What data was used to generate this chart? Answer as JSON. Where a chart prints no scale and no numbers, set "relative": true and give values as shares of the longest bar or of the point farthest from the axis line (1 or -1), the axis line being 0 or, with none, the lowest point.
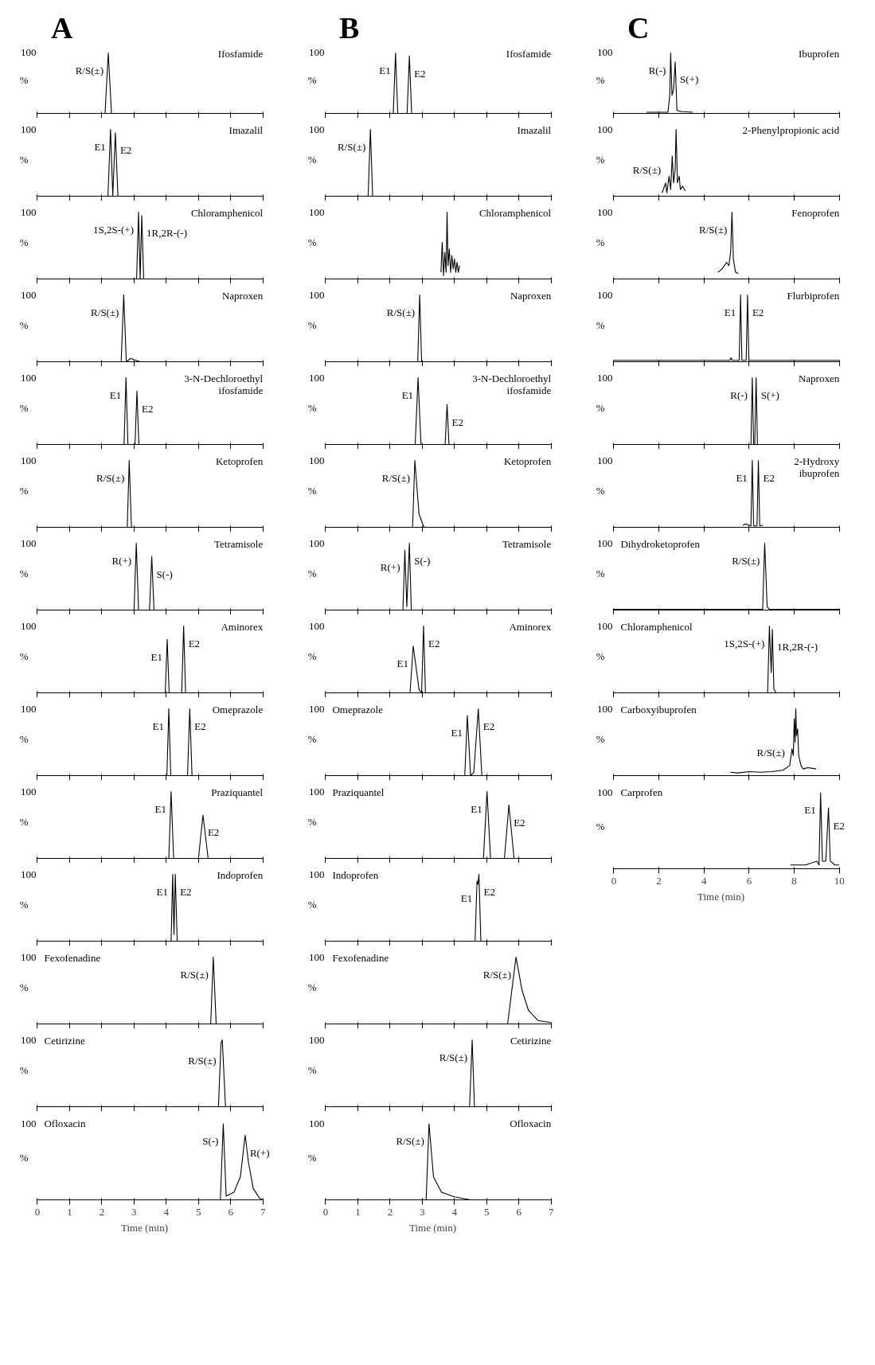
{
  "chart_data": [
    {
      "type": "line",
      "title": "Ifosfamide",
      "ylabel": "%",
      "relative": true,
      "xlim": [
        0,
        7
      ],
      "xticks": [
        0,
        1,
        2,
        3,
        4,
        5,
        6,
        7
      ],
      "tick_labels": false,
      "annotations": [
        "100",
        "A",
        {
          "text": "R/S(±)",
          "x": 2.2,
          "y": 1
        }
      ],
      "series": [
        {
          "color": "#000000",
          "x": [
            0,
            2.1,
            2.2,
            2.3,
            7
          ],
          "values": [
            0,
            0,
            1,
            0,
            0
          ]
        }
      ]
    },
    {
      "type": "line",
      "title": "Imazalil",
      "ylabel": "%",
      "relative": true,
      "xlim": [
        0,
        7
      ],
      "xticks": [
        0,
        1,
        2,
        3,
        4,
        5,
        6,
        7
      ],
      "tick_labels": false,
      "annotations": [
        "100",
        {
          "text": "E1",
          "x": 2.27,
          "y": 1
        },
        {
          "text": "E2",
          "x": 2.42,
          "y": 0.95
        }
      ],
      "series": [
        {
          "color": "#000000",
          "x": [
            0,
            2.19,
            2.27,
            2.34,
            2.42,
            2.5,
            7
          ],
          "values": [
            0,
            0,
            1,
            0,
            0.95,
            0,
            0
          ]
        }
      ]
    },
    {
      "type": "line",
      "title": "Chloramphenicol",
      "ylabel": "%",
      "relative": true,
      "xlim": [
        0,
        7
      ],
      "xticks": [
        0,
        1,
        2,
        3,
        4,
        5,
        6,
        7
      ],
      "tick_labels": false,
      "annotations": [
        "100",
        {
          "text": "1S,2S-(+)",
          "x": 3.14,
          "y": 1
        },
        {
          "text": "1R,2R-(-)",
          "x": 3.24,
          "y": 0.95
        }
      ],
      "series": [
        {
          "color": "#000000",
          "x": [
            0,
            3.08,
            3.14,
            3.19,
            3.24,
            3.3,
            7
          ],
          "values": [
            0,
            0,
            1,
            0,
            0.95,
            0,
            0
          ]
        }
      ]
    },
    {
      "type": "line",
      "title": "Naproxen",
      "ylabel": "%",
      "relative": true,
      "xlim": [
        0,
        7
      ],
      "xticks": [
        0,
        1,
        2,
        3,
        4,
        5,
        6,
        7
      ],
      "tick_labels": false,
      "annotations": [
        "100",
        {
          "text": "R/S(±)",
          "x": 2.68,
          "y": 1
        }
      ],
      "series": [
        {
          "color": "#000000",
          "x": [
            0,
            2.6,
            2.68,
            2.76,
            2.9,
            3.0,
            3.2,
            7
          ],
          "values": [
            0,
            0,
            1,
            0,
            0.05,
            0.03,
            0,
            0
          ]
        }
      ]
    },
    {
      "type": "line",
      "title": "3-N-Dechloroethyl\nifosfamide",
      "ylabel": "%",
      "relative": true,
      "xlim": [
        0,
        7
      ],
      "xticks": [
        0,
        1,
        2,
        3,
        4,
        5,
        6,
        7
      ],
      "tick_labels": false,
      "annotations": [
        "100",
        {
          "text": "E1",
          "x": 2.75,
          "y": 1
        },
        {
          "text": "E2",
          "x": 3.09,
          "y": 0.8
        }
      ],
      "series": [
        {
          "color": "#000000",
          "x": [
            0,
            2.69,
            2.75,
            2.81,
            3.03,
            3.09,
            3.15,
            7
          ],
          "values": [
            0,
            0,
            1,
            0,
            0,
            0.8,
            0,
            0
          ]
        }
      ]
    },
    {
      "type": "line",
      "title": "Ketoprofen",
      "ylabel": "%",
      "relative": true,
      "xlim": [
        0,
        7
      ],
      "xticks": [
        0,
        1,
        2,
        3,
        4,
        5,
        6,
        7
      ],
      "tick_labels": false,
      "annotations": [
        "100",
        {
          "text": "R/S(±)",
          "x": 2.85,
          "y": 1
        }
      ],
      "series": [
        {
          "color": "#000000",
          "x": [
            0,
            2.79,
            2.85,
            2.92,
            7
          ],
          "values": [
            0,
            0,
            1,
            0,
            0
          ]
        }
      ]
    },
    {
      "type": "line",
      "title": "Tetramisole",
      "ylabel": "%",
      "relative": true,
      "xlim": [
        0,
        7
      ],
      "xticks": [
        0,
        1,
        2,
        3,
        4,
        5,
        6,
        7
      ],
      "tick_labels": false,
      "annotations": [
        "100",
        {
          "text": "R(+)",
          "x": 3.07,
          "y": 1
        },
        {
          "text": "S(-)",
          "x": 3.55,
          "y": 0.8
        }
      ],
      "series": [
        {
          "color": "#000000",
          "x": [
            0,
            3.0,
            3.07,
            3.14,
            3.48,
            3.55,
            3.62,
            7
          ],
          "values": [
            0,
            0,
            1,
            0,
            0,
            0.8,
            0,
            0
          ]
        }
      ]
    },
    {
      "type": "line",
      "title": "Aminorex",
      "ylabel": "%",
      "relative": true,
      "xlim": [
        0,
        7
      ],
      "xticks": [
        0,
        1,
        2,
        3,
        4,
        5,
        6,
        7
      ],
      "tick_labels": false,
      "annotations": [
        "100",
        {
          "text": "E1",
          "x": 4.03,
          "y": 0.8
        },
        {
          "text": "E2",
          "x": 4.54,
          "y": 1
        }
      ],
      "series": [
        {
          "color": "#000000",
          "x": [
            0,
            3.97,
            4.03,
            4.09,
            4.48,
            4.54,
            4.6,
            7
          ],
          "values": [
            0,
            0,
            0.8,
            0,
            0,
            1,
            0,
            0
          ]
        }
      ]
    },
    {
      "type": "line",
      "title": "Omeprazole",
      "ylabel": "%",
      "relative": true,
      "xlim": [
        0,
        7
      ],
      "xticks": [
        0,
        1,
        2,
        3,
        4,
        5,
        6,
        7
      ],
      "tick_labels": false,
      "annotations": [
        "100",
        {
          "text": "E1",
          "x": 4.08,
          "y": 1
        },
        {
          "text": "E2",
          "x": 4.73,
          "y": 1
        }
      ],
      "series": [
        {
          "color": "#000000",
          "x": [
            0,
            4.02,
            4.08,
            4.14,
            4.66,
            4.73,
            4.8,
            7
          ],
          "values": [
            0,
            0,
            1,
            0,
            0,
            1,
            0,
            0
          ]
        }
      ]
    },
    {
      "type": "line",
      "title": "Praziquantel",
      "ylabel": "%",
      "relative": true,
      "xlim": [
        0,
        7
      ],
      "xticks": [
        0,
        1,
        2,
        3,
        4,
        5,
        6,
        7
      ],
      "tick_labels": false,
      "annotations": [
        "100",
        {
          "text": "E1",
          "x": 4.15,
          "y": 1
        },
        {
          "text": "E2",
          "x": 5.14,
          "y": 0.65
        }
      ],
      "series": [
        {
          "color": "#000000",
          "x": [
            0,
            4.08,
            4.15,
            4.23,
            5.0,
            5.14,
            5.3,
            7
          ],
          "values": [
            0,
            0,
            1,
            0,
            0,
            0.65,
            0,
            0
          ]
        }
      ]
    },
    {
      "type": "line",
      "title": "Indoprofen",
      "ylabel": "%",
      "relative": true,
      "xlim": [
        0,
        7
      ],
      "xticks": [
        0,
        1,
        2,
        3,
        4,
        5,
        6,
        7
      ],
      "tick_labels": false,
      "annotations": [
        "100",
        {
          "text": "E1",
          "x": 4.2,
          "y": 1
        },
        {
          "text": "E2",
          "x": 4.28,
          "y": 1
        }
      ],
      "series": [
        {
          "color": "#000000",
          "x": [
            0,
            4.15,
            4.2,
            4.24,
            4.28,
            4.34,
            7
          ],
          "values": [
            0,
            0,
            1,
            0.1,
            1,
            0,
            0
          ]
        }
      ]
    },
    {
      "type": "line",
      "title": "Fexofenadine",
      "ylabel": "%",
      "relative": true,
      "xlim": [
        0,
        7
      ],
      "xticks": [
        0,
        1,
        2,
        3,
        4,
        5,
        6,
        7
      ],
      "tick_labels": false,
      "annotations": [
        "100",
        {
          "text": "R/S(±)",
          "x": 5.46,
          "y": 1
        }
      ],
      "series": [
        {
          "color": "#000000",
          "x": [
            0,
            5.38,
            5.46,
            5.55,
            7
          ],
          "values": [
            0,
            0,
            1,
            0,
            0
          ]
        }
      ]
    },
    {
      "type": "line",
      "title": "Cetirizine",
      "ylabel": "%",
      "relative": true,
      "xlim": [
        0,
        7
      ],
      "xticks": [
        0,
        1,
        2,
        3,
        4,
        5,
        6,
        7
      ],
      "tick_labels": false,
      "annotations": [
        "100",
        {
          "text": "R/S(±)",
          "x": 5.7,
          "y": 0.95
        }
      ],
      "series": [
        {
          "color": "#000000",
          "x": [
            0,
            5.62,
            5.7,
            5.74,
            5.84,
            7
          ],
          "values": [
            0,
            0,
            0.95,
            1,
            0,
            0
          ]
        }
      ]
    },
    {
      "type": "line",
      "title": "Ofloxacin",
      "ylabel": "%",
      "xlabel": "Time (min)",
      "relative": true,
      "xlim": [
        0,
        7
      ],
      "xticks": [
        0,
        1,
        2,
        3,
        4,
        5,
        6,
        7
      ],
      "tick_labels": "x",
      "annotations": [
        "100",
        {
          "text": "S(-)",
          "x": 5.77,
          "y": 1
        },
        {
          "text": "R(+)",
          "x": 6.45,
          "y": 0.85
        }
      ],
      "series": [
        {
          "color": "#000000",
          "x": [
            0,
            5.68,
            5.77,
            5.86,
            6.1,
            6.3,
            6.45,
            6.55,
            6.7,
            6.9,
            7
          ],
          "values": [
            0,
            0,
            1,
            0.05,
            0.1,
            0.3,
            0.85,
            0.5,
            0.15,
            0.02,
            0
          ]
        }
      ]
    },
    {
      "type": "line",
      "title": "Ifosfamide",
      "ylabel": "%",
      "relative": true,
      "xlim": [
        0,
        7
      ],
      "xticks": [
        0,
        1,
        2,
        3,
        4,
        5,
        6,
        7
      ],
      "tick_labels": false,
      "annotations": [
        "100",
        "B",
        {
          "text": "E1",
          "x": 2.17,
          "y": 1
        },
        {
          "text": "E2",
          "x": 2.6,
          "y": 0.95
        }
      ],
      "series": [
        {
          "color": "#000000",
          "x": [
            0,
            2.1,
            2.17,
            2.24,
            2.53,
            2.6,
            2.67,
            7
          ],
          "values": [
            0,
            0,
            1,
            0,
            0,
            0.95,
            0,
            0
          ]
        }
      ]
    },
    {
      "type": "line",
      "title": "Imazalil",
      "ylabel": "%",
      "relative": true,
      "xlim": [
        0,
        7
      ],
      "xticks": [
        0,
        1,
        2,
        3,
        4,
        5,
        6,
        7
      ],
      "tick_labels": false,
      "annotations": [
        "100",
        {
          "text": "R/S(±)",
          "x": 1.39,
          "y": 1
        }
      ],
      "series": [
        {
          "color": "#000000",
          "x": [
            0,
            1.32,
            1.39,
            1.46,
            7
          ],
          "values": [
            0,
            0,
            1,
            0,
            0
          ]
        }
      ]
    },
    {
      "type": "line",
      "title": "Chloramphenicol",
      "ylabel": "%",
      "relative": true,
      "xlim": [
        0,
        7
      ],
      "xticks": [
        0,
        1,
        2,
        3,
        4,
        5,
        6,
        7
      ],
      "tick_labels": false,
      "annotations": [
        "100"
      ],
      "series": [
        {
          "color": "#000000",
          "x": [
            3.58,
            3.62,
            3.66,
            3.7,
            3.74,
            3.77,
            3.8,
            3.84,
            3.88,
            3.92,
            3.96,
            4.0,
            4.04,
            4.08,
            4.12,
            4.16
          ],
          "values": [
            0.1,
            0.55,
            0.05,
            0.4,
            0.1,
            1,
            0.2,
            0.45,
            0.1,
            0.35,
            0.15,
            0.3,
            0.1,
            0.25,
            0.1,
            0.2
          ]
        }
      ]
    },
    {
      "type": "line",
      "title": "Naproxen",
      "ylabel": "%",
      "relative": true,
      "xlim": [
        0,
        7
      ],
      "xticks": [
        0,
        1,
        2,
        3,
        4,
        5,
        6,
        7
      ],
      "tick_labels": false,
      "annotations": [
        "100",
        {
          "text": "R/S(±)",
          "x": 2.92,
          "y": 1
        }
      ],
      "series": [
        {
          "color": "#000000",
          "x": [
            0,
            2.86,
            2.92,
            2.98,
            7
          ],
          "values": [
            0,
            0,
            1,
            0,
            0
          ]
        }
      ]
    },
    {
      "type": "line",
      "title": "3-N-Dechloroethyl\nifosfamide",
      "ylabel": "%",
      "relative": true,
      "xlim": [
        0,
        7
      ],
      "xticks": [
        0,
        1,
        2,
        3,
        4,
        5,
        6,
        7
      ],
      "tick_labels": false,
      "annotations": [
        "100",
        {
          "text": "E1",
          "x": 2.87,
          "y": 1
        },
        {
          "text": "E2",
          "x": 3.77,
          "y": 0.6
        }
      ],
      "series": [
        {
          "color": "#000000",
          "x": [
            0,
            2.78,
            2.87,
            2.96,
            3.71,
            3.77,
            3.83,
            7
          ],
          "values": [
            0,
            0,
            1,
            0,
            0,
            0.6,
            0,
            0
          ]
        }
      ]
    },
    {
      "type": "line",
      "title": "Ketoprofen",
      "ylabel": "%",
      "relative": true,
      "xlim": [
        0,
        7
      ],
      "xticks": [
        0,
        1,
        2,
        3,
        4,
        5,
        6,
        7
      ],
      "tick_labels": false,
      "annotations": [
        "100",
        {
          "text": "R/S(±)",
          "x": 2.77,
          "y": 1
        }
      ],
      "series": [
        {
          "color": "#000000",
          "x": [
            0,
            2.7,
            2.77,
            2.9,
            3.05,
            7
          ],
          "values": [
            0,
            0,
            1,
            0.2,
            0,
            0
          ]
        }
      ]
    },
    {
      "type": "line",
      "title": "Tetramisole",
      "ylabel": "%",
      "relative": true,
      "xlim": [
        0,
        7
      ],
      "xticks": [
        0,
        1,
        2,
        3,
        4,
        5,
        6,
        7
      ],
      "tick_labels": false,
      "annotations": [
        "100",
        {
          "text": "R(+)",
          "x": 2.46,
          "y": 0.9
        },
        {
          "text": "S(-)",
          "x": 2.6,
          "y": 1
        }
      ],
      "series": [
        {
          "color": "#000000",
          "x": [
            0,
            2.4,
            2.46,
            2.52,
            2.6,
            2.66,
            7
          ],
          "values": [
            0,
            0,
            0.9,
            0.05,
            1,
            0,
            0
          ]
        }
      ]
    },
    {
      "type": "line",
      "title": "Aminorex",
      "ylabel": "%",
      "relative": true,
      "xlim": [
        0,
        7
      ],
      "xticks": [
        0,
        1,
        2,
        3,
        4,
        5,
        6,
        7
      ],
      "tick_labels": false,
      "annotations": [
        "100",
        {
          "text": "E1",
          "x": 2.72,
          "y": 0.7
        },
        {
          "text": "E2",
          "x": 3.04,
          "y": 1
        }
      ],
      "series": [
        {
          "color": "#000000",
          "x": [
            0,
            2.62,
            2.72,
            2.9,
            2.98,
            3.04,
            3.1,
            7
          ],
          "values": [
            0,
            0,
            0.7,
            0.05,
            0,
            1,
            0,
            0
          ]
        }
      ]
    },
    {
      "type": "line",
      "title": "Omeprazole",
      "ylabel": "%",
      "relative": true,
      "xlim": [
        0,
        7
      ],
      "xticks": [
        0,
        1,
        2,
        3,
        4,
        5,
        6,
        7
      ],
      "tick_labels": false,
      "annotations": [
        "100",
        {
          "text": "E1",
          "x": 4.4,
          "y": 0.9
        },
        {
          "text": "E2",
          "x": 4.74,
          "y": 1
        }
      ],
      "series": [
        {
          "color": "#000000",
          "x": [
            0,
            4.32,
            4.4,
            4.5,
            4.6,
            4.74,
            4.85,
            7
          ],
          "values": [
            0,
            0,
            0.9,
            0,
            0.05,
            1,
            0,
            0
          ]
        }
      ]
    },
    {
      "type": "line",
      "title": "Praziquantel",
      "ylabel": "%",
      "relative": true,
      "xlim": [
        0,
        7
      ],
      "xticks": [
        0,
        1,
        2,
        3,
        4,
        5,
        6,
        7
      ],
      "tick_labels": false,
      "annotations": [
        "100",
        {
          "text": "E1",
          "x": 5.01,
          "y": 1
        },
        {
          "text": "E2",
          "x": 5.69,
          "y": 0.8
        }
      ],
      "series": [
        {
          "color": "#000000",
          "x": [
            0,
            4.9,
            5.01,
            5.12,
            5.55,
            5.69,
            5.85,
            7
          ],
          "values": [
            0,
            0,
            1,
            0,
            0,
            0.8,
            0,
            0
          ]
        }
      ]
    },
    {
      "type": "line",
      "title": "Indoprofen",
      "ylabel": "%",
      "relative": true,
      "xlim": [
        0,
        7
      ],
      "xticks": [
        0,
        1,
        2,
        3,
        4,
        5,
        6,
        7
      ],
      "tick_labels": false,
      "annotations": [
        "100",
        {
          "text": "E1",
          "x": 4.7,
          "y": 0.9
        },
        {
          "text": "E2",
          "x": 4.76,
          "y": 1
        }
      ],
      "series": [
        {
          "color": "#000000",
          "x": [
            0,
            4.64,
            4.7,
            4.73,
            4.76,
            4.82,
            7
          ],
          "values": [
            0,
            0,
            0.9,
            0.85,
            1,
            0,
            0
          ]
        }
      ]
    },
    {
      "type": "line",
      "title": "Fexofenadine",
      "ylabel": "%",
      "relative": true,
      "xlim": [
        0,
        7
      ],
      "xticks": [
        0,
        1,
        2,
        3,
        4,
        5,
        6,
        7
      ],
      "tick_labels": false,
      "annotations": [
        "100",
        {
          "text": "R/S(±)",
          "x": 5.91,
          "y": 1
        }
      ],
      "series": [
        {
          "color": "#000000",
          "x": [
            0,
            5.65,
            5.91,
            6.1,
            6.3,
            6.6,
            7
          ],
          "values": [
            0,
            0,
            1,
            0.5,
            0.2,
            0.05,
            0.02
          ]
        }
      ]
    },
    {
      "type": "line",
      "title": "Cetirizine",
      "ylabel": "%",
      "relative": true,
      "xlim": [
        0,
        7
      ],
      "xticks": [
        0,
        1,
        2,
        3,
        4,
        5,
        6,
        7
      ],
      "tick_labels": false,
      "annotations": [
        "100",
        {
          "text": "R/S(±)",
          "x": 4.55,
          "y": 1
        }
      ],
      "series": [
        {
          "color": "#000000",
          "x": [
            0,
            4.47,
            4.55,
            4.62,
            7
          ],
          "values": [
            0,
            0,
            1,
            0,
            0
          ]
        }
      ]
    },
    {
      "type": "line",
      "title": "Ofloxacin",
      "ylabel": "%",
      "xlabel": "Time (min)",
      "relative": true,
      "xlim": [
        0,
        7
      ],
      "xticks": [
        0,
        1,
        2,
        3,
        4,
        5,
        6,
        7
      ],
      "tick_labels": "x",
      "annotations": [
        "100",
        {
          "text": "R/S(±)",
          "x": 3.21,
          "y": 1
        }
      ],
      "series": [
        {
          "color": "#000000",
          "x": [
            0,
            3.12,
            3.21,
            3.35,
            3.6,
            4.0,
            4.5,
            7
          ],
          "values": [
            0,
            0,
            1,
            0.3,
            0.1,
            0.04,
            0,
            0
          ]
        }
      ]
    },
    {
      "type": "line",
      "title": "Ibuprofen",
      "ylabel": "%",
      "relative": true,
      "xlim": [
        0,
        10
      ],
      "xticks": [
        0,
        2,
        4,
        6,
        8,
        10
      ],
      "tick_labels": false,
      "annotations": [
        "100",
        "C",
        {
          "text": "R(-)",
          "x": 2.52,
          "y": 1
        },
        {
          "text": "S(+)",
          "x": 2.72,
          "y": 0.85
        }
      ],
      "series": [
        {
          "color": "#000000",
          "x": [
            1.45,
            2.4,
            2.48,
            2.52,
            2.58,
            2.65,
            2.72,
            2.8,
            3.0,
            3.5
          ],
          "values": [
            0.02,
            0.02,
            0.3,
            1,
            0.3,
            0.4,
            0.85,
            0.05,
            0.03,
            0.02
          ]
        }
      ]
    },
    {
      "type": "line",
      "title": "2-Phenylpropionic acid",
      "ylabel": "%",
      "relative": true,
      "xlim": [
        0,
        10
      ],
      "xticks": [
        0,
        2,
        4,
        6,
        8,
        10
      ],
      "tick_labels": false,
      "annotations": [
        "100",
        {
          "text": "R/S(±)",
          "x": 2.3,
          "y": 0.2
        }
      ],
      "series": [
        {
          "color": "#000000",
          "x": [
            2.14,
            2.3,
            2.35,
            2.45,
            2.52,
            2.59,
            2.65,
            2.72,
            2.76,
            2.82,
            2.9,
            2.95,
            3.05,
            3.17
          ],
          "values": [
            0.05,
            0.2,
            0.05,
            0.3,
            0.1,
            0.6,
            0.2,
            0.4,
            1,
            0.2,
            0.3,
            0.1,
            0.15,
            0.08
          ]
        }
      ]
    },
    {
      "type": "line",
      "title": "Fenoprofen",
      "ylabel": "%",
      "relative": true,
      "xlim": [
        0,
        10
      ],
      "xticks": [
        0,
        2,
        4,
        6,
        8,
        10
      ],
      "tick_labels": false,
      "annotations": [
        "100",
        {
          "text": "R/S(±)",
          "x": 5.24,
          "y": 1
        }
      ],
      "series": [
        {
          "color": "#000000",
          "x": [
            4.62,
            4.8,
            5.0,
            5.1,
            5.18,
            5.24,
            5.3,
            5.4,
            5.52
          ],
          "values": [
            0.1,
            0.15,
            0.25,
            0.2,
            0.4,
            1,
            0.3,
            0.1,
            0.08
          ]
        }
      ]
    },
    {
      "type": "line",
      "title": "Flurbiprofen",
      "ylabel": "%",
      "relative": true,
      "xlim": [
        0,
        10
      ],
      "xticks": [
        0,
        2,
        4,
        6,
        8,
        10
      ],
      "tick_labels": false,
      "annotations": [
        "100",
        {
          "text": "E1",
          "x": 5.62,
          "y": 1
        },
        {
          "text": "E2",
          "x": 5.93,
          "y": 1
        }
      ],
      "series": [
        {
          "color": "#000000",
          "x": [
            0,
            5.15,
            5.2,
            5.25,
            5.56,
            5.62,
            5.68,
            5.87,
            5.93,
            5.99,
            10
          ],
          "values": [
            0.02,
            0.02,
            0.06,
            0.02,
            0.02,
            1,
            0.02,
            0.02,
            1,
            0.02,
            0.02
          ]
        }
      ]
    },
    {
      "type": "line",
      "title": "Naproxen",
      "ylabel": "%",
      "relative": true,
      "xlim": [
        0,
        10
      ],
      "xticks": [
        0,
        2,
        4,
        6,
        8,
        10
      ],
      "tick_labels": false,
      "annotations": [
        "100",
        {
          "text": "R(-)",
          "x": 6.14,
          "y": 1
        },
        {
          "text": "S(+)",
          "x": 6.31,
          "y": 1
        }
      ],
      "series": [
        {
          "color": "#000000",
          "x": [
            0,
            6.08,
            6.14,
            6.2,
            6.25,
            6.31,
            6.37,
            10
          ],
          "values": [
            0,
            0,
            1,
            0,
            0,
            1,
            0,
            0
          ]
        }
      ]
    },
    {
      "type": "line",
      "title": "2-Hydroxy\nibuprofen",
      "ylabel": "%",
      "relative": true,
      "xlim": [
        0,
        10
      ],
      "xticks": [
        0,
        2,
        4,
        6,
        8,
        10
      ],
      "tick_labels": false,
      "annotations": [
        "100",
        {
          "text": "E1",
          "x": 6.14,
          "y": 1
        },
        {
          "text": "E2",
          "x": 6.41,
          "y": 1
        }
      ],
      "series": [
        {
          "color": "#000000",
          "x": [
            5.72,
            5.85,
            6.08,
            6.14,
            6.2,
            6.35,
            6.41,
            6.47,
            6.62
          ],
          "values": [
            0.03,
            0.05,
            0.02,
            1,
            0.02,
            0.02,
            1,
            0.02,
            0.03
          ]
        }
      ]
    },
    {
      "type": "line",
      "title": "Dihydroketoprofen",
      "ylabel": "%",
      "relative": true,
      "xlim": [
        0,
        10
      ],
      "xticks": [
        0,
        2,
        4,
        6,
        8,
        10
      ],
      "tick_labels": false,
      "annotations": [
        "100",
        {
          "text": "R/S(±)",
          "x": 6.69,
          "y": 1
        }
      ],
      "series": [
        {
          "color": "#000000",
          "x": [
            0,
            6.6,
            6.69,
            6.8,
            6.9,
            10
          ],
          "values": [
            0.01,
            0.01,
            1,
            0.05,
            0.01,
            0.01
          ]
        }
      ]
    },
    {
      "type": "line",
      "title": "Chloramphenicol",
      "ylabel": "%",
      "relative": true,
      "xlim": [
        0,
        10
      ],
      "xticks": [
        0,
        2,
        4,
        6,
        8,
        10
      ],
      "tick_labels": false,
      "annotations": [
        "100",
        {
          "text": "1S,2S-(+)",
          "x": 6.9,
          "y": 1
        },
        {
          "text": "1R,2R-(-)",
          "x": 7.03,
          "y": 0.95
        }
      ],
      "series": [
        {
          "color": "#000000",
          "x": [
            0,
            6.82,
            6.9,
            6.98,
            7.03,
            7.1,
            7.2,
            10
          ],
          "values": [
            0,
            0,
            1,
            0.3,
            0.95,
            0.05,
            0,
            0
          ]
        }
      ]
    },
    {
      "type": "line",
      "title": "Carboxyibuprofen",
      "ylabel": "%",
      "relative": true,
      "xlim": [
        0,
        10
      ],
      "xticks": [
        0,
        2,
        4,
        6,
        8,
        10
      ],
      "tick_labels": false,
      "annotations": [
        "100",
        {
          "text": "R/S(±)",
          "x": 7.8,
          "y": 0.15
        }
      ],
      "series": [
        {
          "color": "#000000",
          "x": [
            5.17,
            5.5,
            6.0,
            6.5,
            7.0,
            7.5,
            7.8,
            7.9,
            7.96,
            8.0,
            8.04,
            8.07,
            8.1,
            8.15,
            8.2,
            8.3,
            8.4,
            8.6,
            8.97
          ],
          "values": [
            0.05,
            0.04,
            0.06,
            0.05,
            0.06,
            0.08,
            0.15,
            0.4,
            0.3,
            0.85,
            0.5,
            1,
            0.6,
            0.7,
            0.3,
            0.15,
            0.1,
            0.12,
            0.1
          ]
        }
      ]
    },
    {
      "type": "line",
      "title": "Carprofen",
      "ylabel": "%",
      "xlabel": "Time (min)",
      "relative": true,
      "xlim": [
        0,
        10
      ],
      "xticks": [
        0,
        2,
        4,
        6,
        8,
        10
      ],
      "tick_labels": "x",
      "annotations": [
        "100",
        {
          "text": "E1",
          "x": 9.17,
          "y": 1
        },
        {
          "text": "E2",
          "x": 9.52,
          "y": 0.8
        }
      ],
      "series": [
        {
          "color": "#000000",
          "x": [
            7.83,
            8.5,
            9.0,
            9.1,
            9.17,
            9.25,
            9.4,
            9.52,
            9.6,
            9.8,
            10
          ],
          "values": [
            0.05,
            0.05,
            0.1,
            0.05,
            1,
            0.1,
            0.1,
            0.8,
            0.1,
            0.05,
            0.05
          ]
        }
      ]
    }
  ]
}
